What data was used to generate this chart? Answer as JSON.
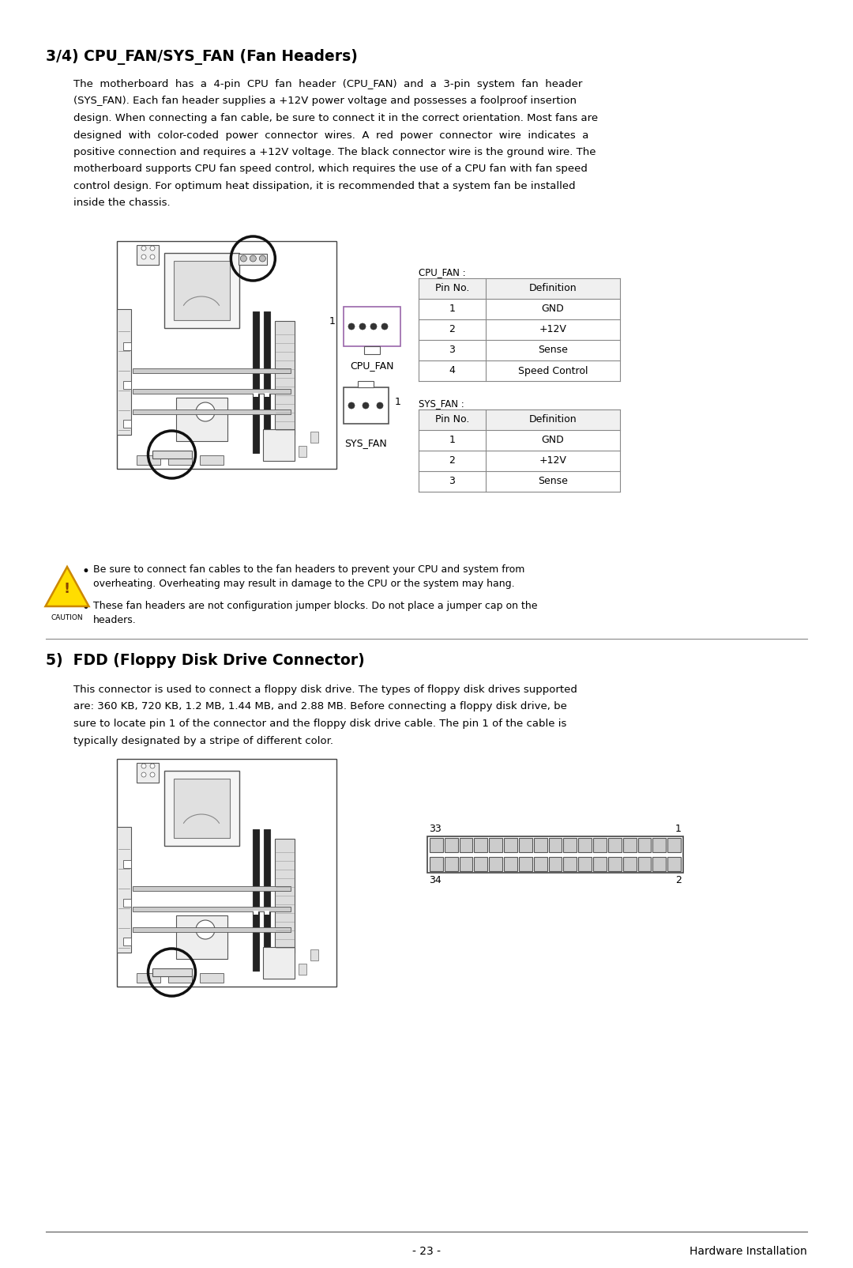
{
  "page_title": "3/4) CPU_FAN/SYS_FAN (Fan Headers)",
  "section2_title": "5)  FDD (Floppy Disk Drive Connector)",
  "cpu_fan_label": "CPU_FAN :",
  "cpu_fan_table_headers": [
    "Pin No.",
    "Definition"
  ],
  "cpu_fan_rows": [
    [
      "1",
      "GND"
    ],
    [
      "2",
      "+12V"
    ],
    [
      "3",
      "Sense"
    ],
    [
      "4",
      "Speed Control"
    ]
  ],
  "sys_fan_label": "SYS_FAN :",
  "sys_fan_table_headers": [
    "Pin No.",
    "Definition"
  ],
  "sys_fan_rows": [
    [
      "1",
      "GND"
    ],
    [
      "2",
      "+12V"
    ],
    [
      "3",
      "Sense"
    ]
  ],
  "page_number": "- 23 -",
  "page_footer": "Hardware Installation",
  "bg_color": "#ffffff",
  "text_color": "#000000",
  "table_border_color": "#aaaaaa"
}
